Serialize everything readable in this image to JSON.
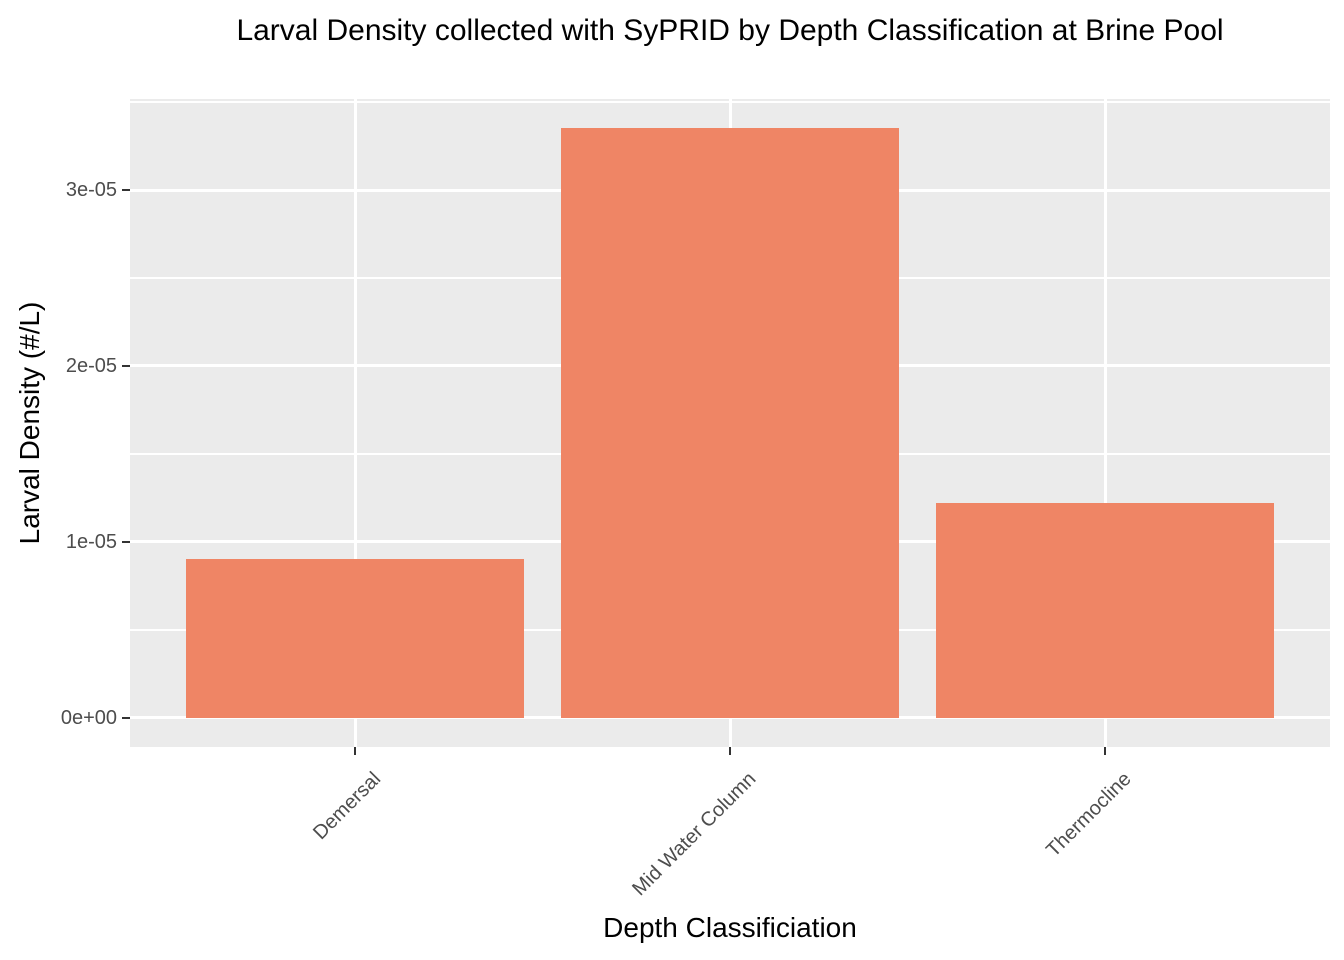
{
  "chart_data": {
    "type": "bar",
    "title": "Larval Density collected with SyPRID by Depth Classification at Brine Pool",
    "xlabel": "Depth Classificiation",
    "ylabel": "Larval Density (#/L)",
    "categories": [
      "Demersal",
      "Mid Water Column",
      "Thermocline"
    ],
    "values": [
      9e-06,
      3.35e-05,
      1.22e-05
    ],
    "yticks": [
      {
        "value": 0,
        "label": "0e+00"
      },
      {
        "value": 1e-05,
        "label": "1e-05"
      },
      {
        "value": 2e-05,
        "label": "2e-05"
      },
      {
        "value": 3e-05,
        "label": "3e-05"
      }
    ],
    "ylim_implied": [
      0,
      3.35e-05
    ],
    "grid": "major-and-minor",
    "legend_position": "none",
    "colors": {
      "bar_fill": "#EF8565",
      "panel_background": "#EBEBEB",
      "gridline": "#FFFFFF",
      "tick_mark": "#333333",
      "tick_label": "#4D4D4D",
      "title_text": "#000000",
      "page_background": "#FFFFFF"
    }
  }
}
